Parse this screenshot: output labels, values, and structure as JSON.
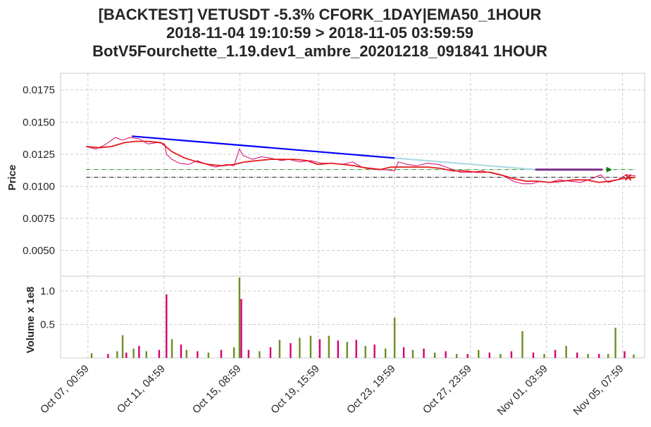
{
  "titles": {
    "line1": "[BACKTEST] VETUSDT -5.3% CFORK_1DAY|EMA50_1HOUR",
    "line2": "2018-11-04 19:10:59 > 2018-11-05 03:59:59",
    "line3": "BotV5Fourchette_1.19.dev1_ambre_20201218_091841 1HOUR"
  },
  "colors": {
    "ema": "#e31a1c",
    "trend_main": "#0000ff",
    "trend_light": "#add8e6",
    "trade_line": "#7b2d8e",
    "level_green": "#008000",
    "level_black": "#000000",
    "candle_up": "#6b8e23",
    "candle_down": "#d6006e"
  },
  "chart_data": [
    {
      "type": "line",
      "panel": "price",
      "ylabel": "Price",
      "ylim": [
        0.003,
        0.0188
      ],
      "yticks": [
        "0.0050",
        "0.0075",
        "0.0100",
        "0.0125",
        "0.0150",
        "0.0175"
      ],
      "ytick_values": [
        0.005,
        0.0075,
        0.01,
        0.0125,
        0.015,
        0.0175
      ],
      "x_ticks": [
        "Oct 07, 00:59",
        "Oct 11, 04:59",
        "Oct 15, 08:59",
        "Oct 19, 15:59",
        "Oct 23, 19:59",
        "Oct 27, 23:59",
        "Nov 01, 03:59",
        "Nov 05, 07:59"
      ],
      "x_tick_days": [
        0,
        4.17,
        8.33,
        12.63,
        16.79,
        20.96,
        25.13,
        29.29
      ],
      "xlim_days": [
        -1.5,
        30.5
      ],
      "grid": true,
      "series": [
        {
          "role": "ema",
          "x": [
            -0.1,
            0.6,
            1.3,
            2.0,
            2.6,
            3.3,
            4.0,
            4.6,
            5.3,
            6.0,
            6.6,
            7.3,
            8.0,
            8.6,
            9.3,
            10.0,
            10.6,
            11.3,
            12.0,
            12.6,
            13.3,
            14.0,
            14.6,
            15.3,
            16.0,
            16.6,
            17.3,
            18.0,
            18.6,
            19.3,
            20.0,
            20.6,
            21.3,
            22.0,
            22.6,
            23.3,
            24.0,
            24.6,
            25.3,
            26.0,
            26.6,
            27.3,
            28.0,
            28.6,
            29.3,
            30.0
          ],
          "y": [
            0.0131,
            0.013,
            0.0131,
            0.0134,
            0.0135,
            0.0135,
            0.0134,
            0.0127,
            0.0122,
            0.0119,
            0.0117,
            0.0116,
            0.0117,
            0.0119,
            0.012,
            0.0121,
            0.0121,
            0.0121,
            0.012,
            0.0117,
            0.0118,
            0.0117,
            0.0116,
            0.0114,
            0.0113,
            0.0115,
            0.0115,
            0.0115,
            0.0115,
            0.0114,
            0.0112,
            0.0112,
            0.0111,
            0.0111,
            0.0109,
            0.0106,
            0.0104,
            0.0104,
            0.0103,
            0.0104,
            0.0105,
            0.0105,
            0.0103,
            0.0104,
            0.0106,
            0.0107
          ]
        },
        {
          "role": "price",
          "x": [
            -0.1,
            0.4,
            0.9,
            1.5,
            1.9,
            2.3,
            2.8,
            3.3,
            3.8,
            4.2,
            4.3,
            4.6,
            5.0,
            5.5,
            6.0,
            6.5,
            7.0,
            7.6,
            8.0,
            8.3,
            8.5,
            9.0,
            9.5,
            10.0,
            10.6,
            11.0,
            11.6,
            12.2,
            12.8,
            13.3,
            13.9,
            14.5,
            15.0,
            15.6,
            16.2,
            16.8,
            17.0,
            17.5,
            18.0,
            18.6,
            19.2,
            19.8,
            20.4,
            21.0,
            21.6,
            22.2,
            22.8,
            23.3,
            23.8,
            24.3,
            24.8,
            25.3,
            25.8,
            26.4,
            27.0,
            27.6,
            28.1,
            28.5,
            29.0,
            29.5,
            30.0
          ],
          "y": [
            0.0131,
            0.0129,
            0.0132,
            0.0138,
            0.0136,
            0.0138,
            0.0137,
            0.0133,
            0.0134,
            0.0133,
            0.0125,
            0.0121,
            0.0118,
            0.0117,
            0.012,
            0.0117,
            0.0115,
            0.0117,
            0.0116,
            0.0129,
            0.0124,
            0.0121,
            0.0123,
            0.0122,
            0.012,
            0.0121,
            0.0119,
            0.012,
            0.0118,
            0.0118,
            0.0117,
            0.0119,
            0.0115,
            0.0114,
            0.0113,
            0.0112,
            0.0119,
            0.0117,
            0.0116,
            0.0118,
            0.0117,
            0.0114,
            0.0111,
            0.0111,
            0.0112,
            0.011,
            0.0108,
            0.0104,
            0.0102,
            0.0102,
            0.0104,
            0.0103,
            0.0105,
            0.0104,
            0.0103,
            0.0106,
            0.0109,
            0.0103,
            0.0105,
            0.0109,
            0.0108
          ]
        },
        {
          "role": "trend_main",
          "x": [
            2.4,
            16.8
          ],
          "y": [
            0.0139,
            0.0122
          ]
        },
        {
          "role": "trend_light",
          "x": [
            16.8,
            24.5
          ],
          "y": [
            0.0122,
            0.0113
          ]
        },
        {
          "role": "trade_line",
          "x": [
            24.5,
            28.2
          ],
          "y": [
            0.0113,
            0.0113
          ]
        },
        {
          "role": "level_green",
          "x": [
            -0.1,
            30.0
          ],
          "y": [
            0.0113,
            0.0113
          ]
        },
        {
          "role": "level_black",
          "x": [
            -0.1,
            30.0
          ],
          "y": [
            0.0107,
            0.0107
          ]
        }
      ],
      "markers": [
        {
          "kind": "buy",
          "x": 28.6,
          "y": 0.0113
        },
        {
          "kind": "sell",
          "x": 29.6,
          "y": 0.0107
        }
      ]
    },
    {
      "type": "bar",
      "panel": "volume",
      "ylabel": "Volume x 1e8",
      "ylim": [
        0,
        1.22
      ],
      "yticks": [
        "0.5",
        "1.0"
      ],
      "ytick_values": [
        0.5,
        1.0
      ],
      "x": [
        0.2,
        1.1,
        1.6,
        1.9,
        2.1,
        2.5,
        2.8,
        3.2,
        3.9,
        4.3,
        4.6,
        5.1,
        5.4,
        6.0,
        6.6,
        7.3,
        8.0,
        8.3,
        8.4,
        8.8,
        9.4,
        10.0,
        10.5,
        11.1,
        11.6,
        12.2,
        12.7,
        13.2,
        13.7,
        14.2,
        14.7,
        15.2,
        15.7,
        16.3,
        16.8,
        17.3,
        17.8,
        18.4,
        19.0,
        19.6,
        20.2,
        20.8,
        21.4,
        22.0,
        22.6,
        23.2,
        23.8,
        24.4,
        25.0,
        25.6,
        26.2,
        26.8,
        27.4,
        28.0,
        28.5,
        28.9,
        29.4,
        29.9
      ],
      "values": [
        0.07,
        0.06,
        0.1,
        0.34,
        0.08,
        0.14,
        0.18,
        0.1,
        0.12,
        0.95,
        0.28,
        0.2,
        0.12,
        0.1,
        0.08,
        0.12,
        0.16,
        1.2,
        0.88,
        0.12,
        0.1,
        0.16,
        0.27,
        0.22,
        0.3,
        0.33,
        0.28,
        0.33,
        0.26,
        0.24,
        0.27,
        0.18,
        0.2,
        0.14,
        0.6,
        0.16,
        0.12,
        0.14,
        0.08,
        0.1,
        0.06,
        0.06,
        0.12,
        0.08,
        0.06,
        0.1,
        0.4,
        0.08,
        0.06,
        0.12,
        0.18,
        0.08,
        0.06,
        0.06,
        0.06,
        0.45,
        0.1,
        0.05
      ],
      "up": [
        true,
        false,
        true,
        true,
        false,
        true,
        false,
        true,
        false,
        false,
        true,
        false,
        true,
        false,
        true,
        false,
        true,
        true,
        false,
        false,
        true,
        false,
        true,
        false,
        true,
        true,
        false,
        true,
        false,
        true,
        false,
        true,
        false,
        true,
        true,
        false,
        true,
        false,
        true,
        false,
        true,
        false,
        true,
        false,
        true,
        false,
        true,
        false,
        true,
        false,
        true,
        false,
        true,
        false,
        true,
        true,
        false,
        true
      ]
    }
  ]
}
